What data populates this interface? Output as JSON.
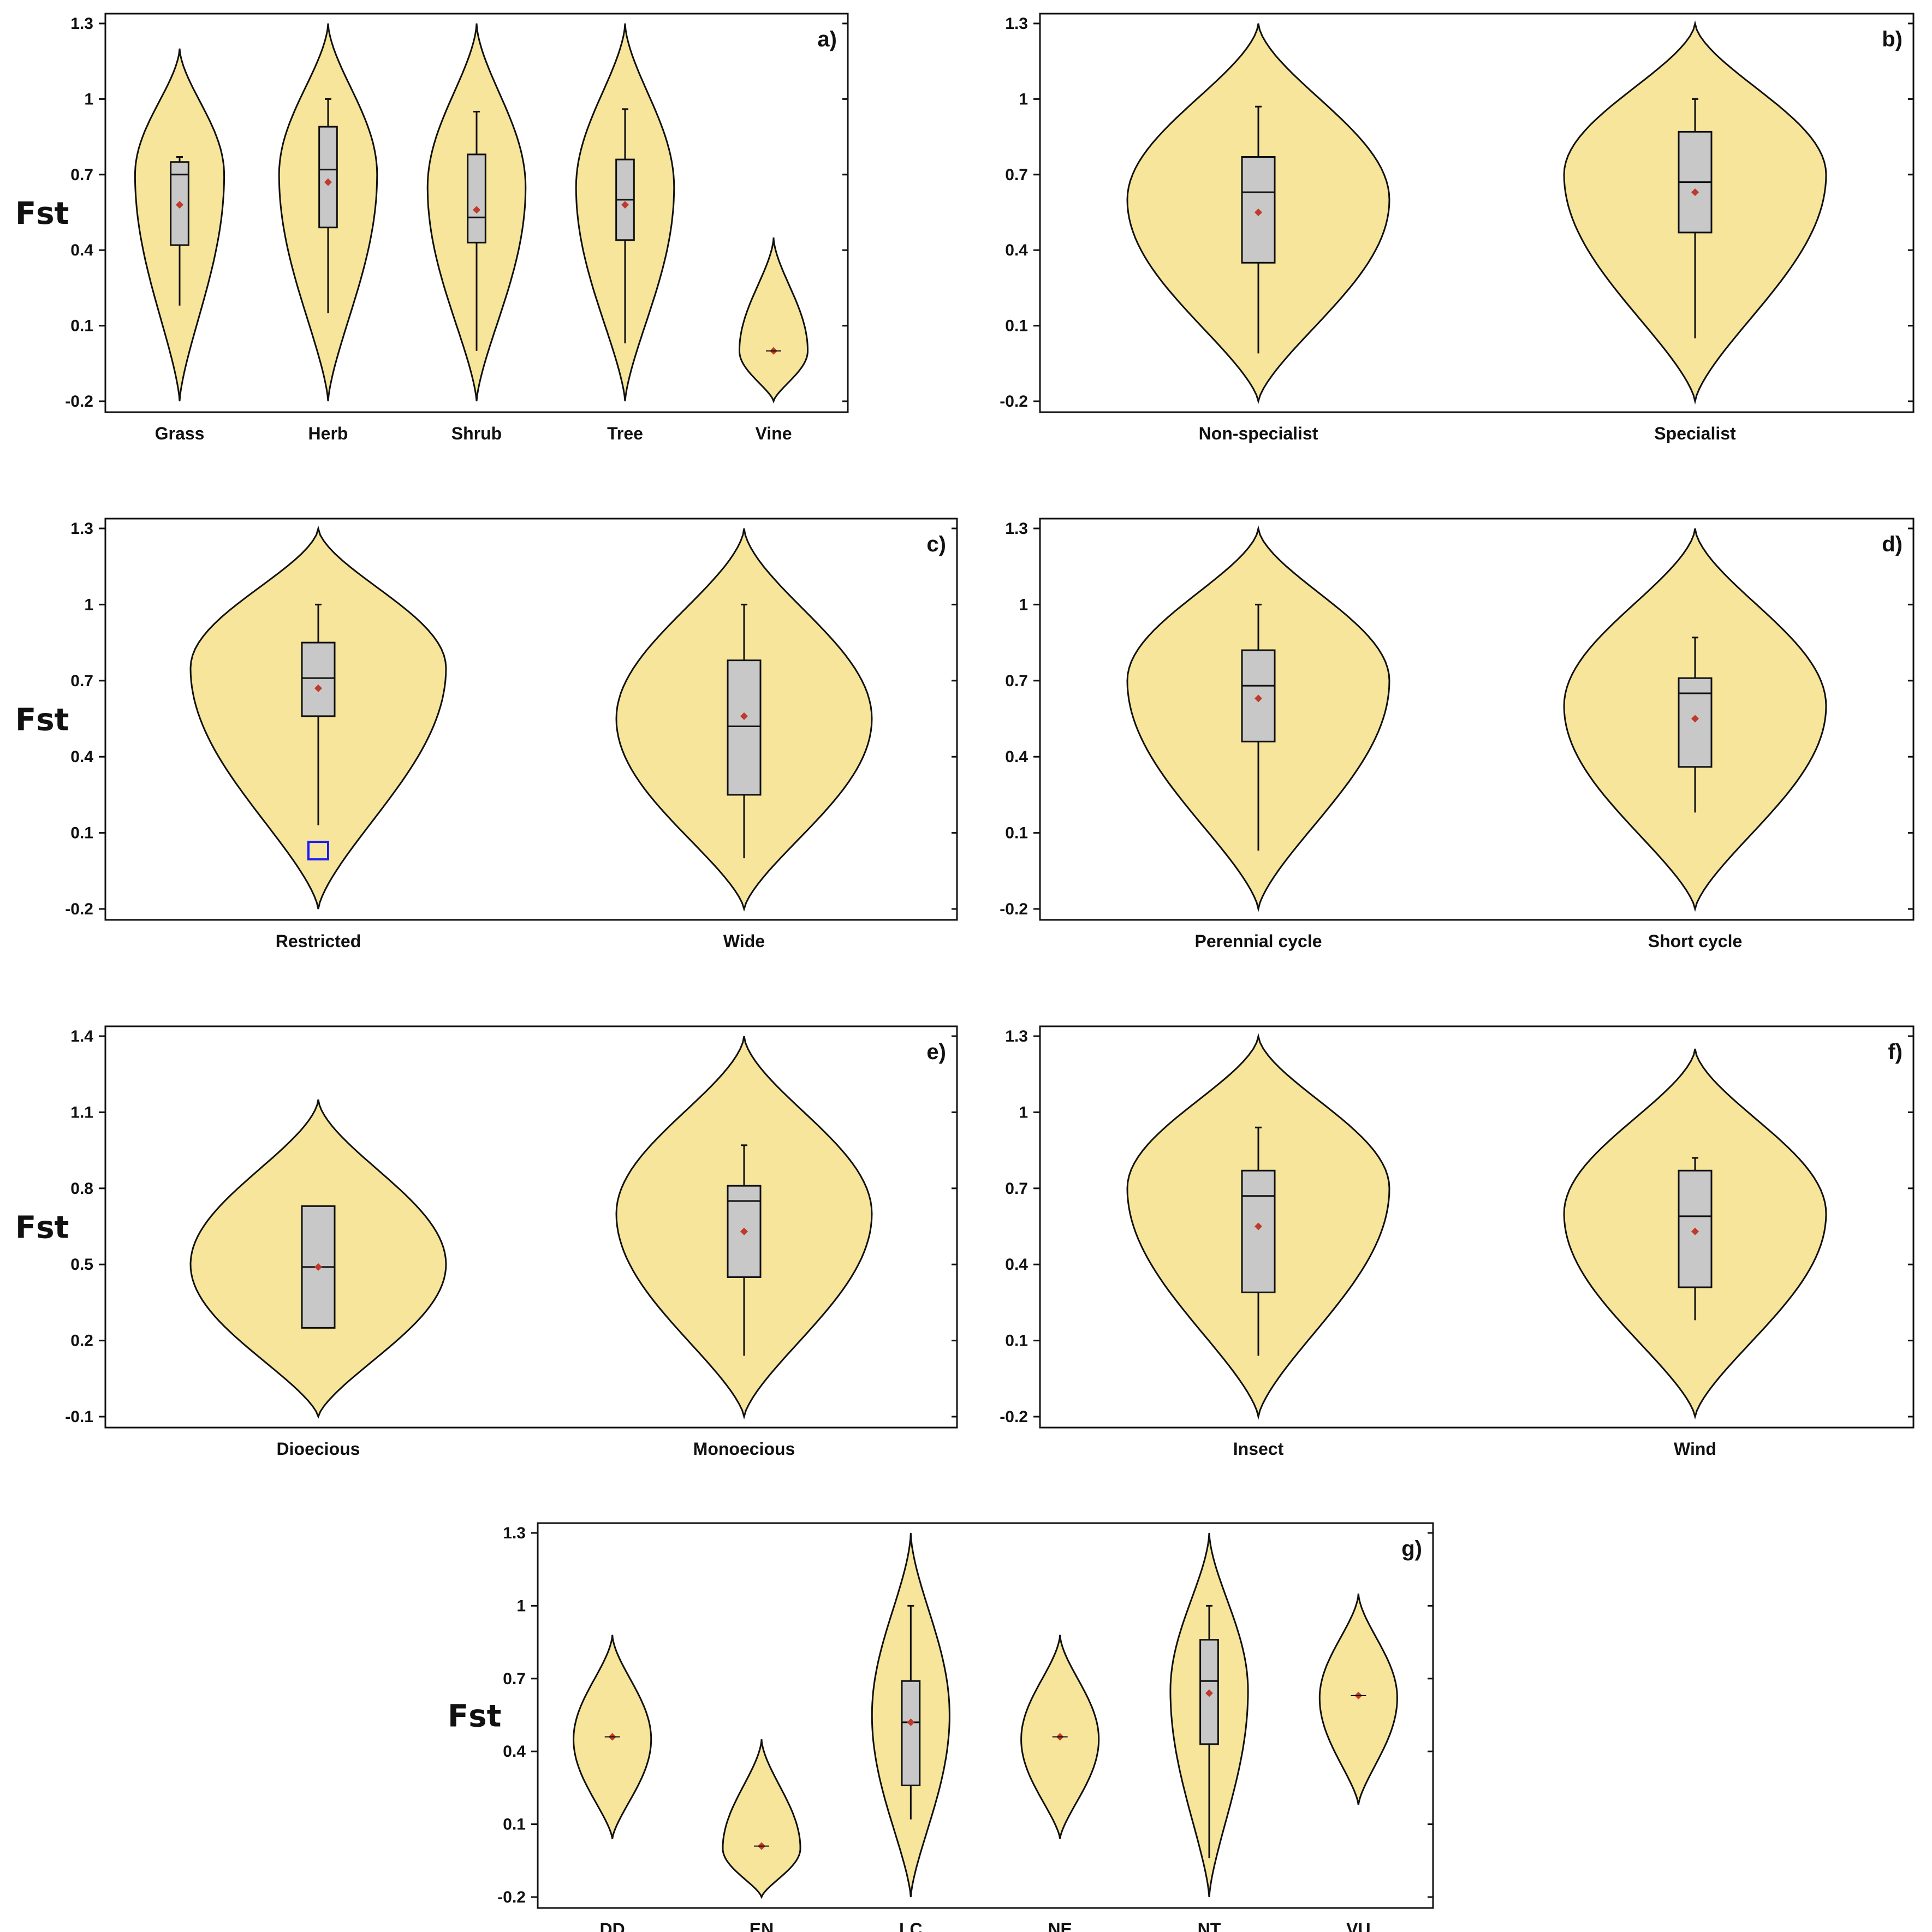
{
  "colors": {
    "violin": "#f6e59a",
    "box": "#c8c8c8",
    "outline": "#111111",
    "mean": "#c0392b",
    "outlier": "#1a1aff"
  },
  "chart_data": [
    {
      "type": "violin",
      "label": "a)",
      "ylabel": "Fst",
      "ylim": [
        -0.2,
        1.3
      ],
      "yticks": [
        "-0.2",
        "0.1",
        "0.4",
        "0.7",
        "1",
        "1.3"
      ],
      "categories": [
        "Grass",
        "Herb",
        "Shrub",
        "Tree",
        "Vine"
      ],
      "groups": [
        {
          "name": "Grass",
          "vmin": -0.2,
          "vmax": 1.2,
          "vmode": 0.7,
          "vwidth": 0.3,
          "q1": 0.42,
          "median": 0.7,
          "q3": 0.75,
          "wlo": 0.18,
          "whi": 0.77,
          "mean": 0.58
        },
        {
          "name": "Herb",
          "vmin": -0.2,
          "vmax": 1.3,
          "vmode": 0.7,
          "vwidth": 0.33,
          "q1": 0.49,
          "median": 0.72,
          "q3": 0.89,
          "wlo": 0.15,
          "whi": 1.0,
          "mean": 0.67
        },
        {
          "name": "Shrub",
          "vmin": -0.2,
          "vmax": 1.3,
          "vmode": 0.65,
          "vwidth": 0.33,
          "q1": 0.43,
          "median": 0.53,
          "q3": 0.78,
          "wlo": 0.0,
          "whi": 0.95,
          "mean": 0.56
        },
        {
          "name": "Tree",
          "vmin": -0.2,
          "vmax": 1.3,
          "vmode": 0.65,
          "vwidth": 0.33,
          "q1": 0.44,
          "median": 0.6,
          "q3": 0.76,
          "wlo": 0.03,
          "whi": 0.96,
          "mean": 0.58
        },
        {
          "name": "Vine",
          "vmin": -0.2,
          "vmax": 0.45,
          "vmode": 0.0,
          "vwidth": 0.23,
          "mean": 0.0
        }
      ]
    },
    {
      "type": "violin",
      "label": "b)",
      "ylabel": "",
      "ylim": [
        -0.2,
        1.3
      ],
      "yticks": [
        "-0.2",
        "0.1",
        "0.4",
        "0.7",
        "1",
        "1.3"
      ],
      "categories": [
        "Non-specialist",
        "Specialist"
      ],
      "groups": [
        {
          "name": "Non-specialist",
          "vmin": -0.2,
          "vmax": 1.3,
          "vmode": 0.6,
          "vwidth": 0.3,
          "q1": 0.35,
          "median": 0.63,
          "q3": 0.77,
          "wlo": -0.01,
          "whi": 0.97,
          "mean": 0.55
        },
        {
          "name": "Specialist",
          "vmin": -0.2,
          "vmax": 1.3,
          "vmode": 0.7,
          "vwidth": 0.3,
          "q1": 0.47,
          "median": 0.67,
          "q3": 0.87,
          "wlo": 0.05,
          "whi": 1.0,
          "mean": 0.63
        }
      ]
    },
    {
      "type": "violin",
      "label": "c)",
      "ylabel": "Fst",
      "ylim": [
        -0.2,
        1.3
      ],
      "yticks": [
        "-0.2",
        "0.1",
        "0.4",
        "0.7",
        "1",
        "1.3"
      ],
      "categories": [
        "Restricted",
        "Wide"
      ],
      "groups": [
        {
          "name": "Restricted",
          "vmin": -0.2,
          "vmax": 1.3,
          "vmode": 0.75,
          "vwidth": 0.3,
          "q1": 0.56,
          "median": 0.71,
          "q3": 0.85,
          "wlo": 0.13,
          "whi": 1.0,
          "mean": 0.67,
          "outliers": [
            0.03
          ]
        },
        {
          "name": "Wide",
          "vmin": -0.2,
          "vmax": 1.3,
          "vmode": 0.55,
          "vwidth": 0.3,
          "q1": 0.25,
          "median": 0.52,
          "q3": 0.78,
          "wlo": 0.0,
          "whi": 1.0,
          "mean": 0.56
        }
      ]
    },
    {
      "type": "violin",
      "label": "d)",
      "ylabel": "",
      "ylim": [
        -0.2,
        1.3
      ],
      "yticks": [
        "-0.2",
        "0.1",
        "0.4",
        "0.7",
        "1",
        "1.3"
      ],
      "categories": [
        "Perennial cycle",
        "Short cycle"
      ],
      "groups": [
        {
          "name": "Perennial cycle",
          "vmin": -0.2,
          "vmax": 1.3,
          "vmode": 0.7,
          "vwidth": 0.3,
          "q1": 0.46,
          "median": 0.68,
          "q3": 0.82,
          "wlo": 0.03,
          "whi": 1.0,
          "mean": 0.63
        },
        {
          "name": "Short cycle",
          "vmin": -0.2,
          "vmax": 1.3,
          "vmode": 0.6,
          "vwidth": 0.3,
          "q1": 0.36,
          "median": 0.65,
          "q3": 0.71,
          "wlo": 0.18,
          "whi": 0.87,
          "mean": 0.55
        }
      ]
    },
    {
      "type": "violin",
      "label": "e)",
      "ylabel": "Fst",
      "ylim": [
        -0.1,
        1.4
      ],
      "yticks": [
        "-0.1",
        "0.2",
        "0.5",
        "0.8",
        "1.1",
        "1.4"
      ],
      "categories": [
        "Dioecious",
        "Monoecious"
      ],
      "groups": [
        {
          "name": "Dioecious",
          "vmin": -0.1,
          "vmax": 1.15,
          "vmode": 0.5,
          "vwidth": 0.3,
          "q1": 0.25,
          "median": 0.49,
          "q3": 0.73,
          "mean": 0.49
        },
        {
          "name": "Monoecious",
          "vmin": -0.1,
          "vmax": 1.4,
          "vmode": 0.7,
          "vwidth": 0.3,
          "q1": 0.45,
          "median": 0.75,
          "q3": 0.81,
          "wlo": 0.14,
          "whi": 0.97,
          "mean": 0.63
        }
      ]
    },
    {
      "type": "violin",
      "label": "f)",
      "ylabel": "",
      "ylim": [
        -0.2,
        1.3
      ],
      "yticks": [
        "-0.2",
        "0.1",
        "0.4",
        "0.7",
        "1",
        "1.3"
      ],
      "categories": [
        "Insect",
        "Wind"
      ],
      "groups": [
        {
          "name": "Insect",
          "vmin": -0.2,
          "vmax": 1.3,
          "vmode": 0.7,
          "vwidth": 0.3,
          "q1": 0.29,
          "median": 0.67,
          "q3": 0.77,
          "wlo": 0.04,
          "whi": 0.94,
          "mean": 0.55
        },
        {
          "name": "Wind",
          "vmin": -0.2,
          "vmax": 1.25,
          "vmode": 0.6,
          "vwidth": 0.3,
          "q1": 0.31,
          "median": 0.59,
          "q3": 0.77,
          "wlo": 0.18,
          "whi": 0.82,
          "mean": 0.53
        }
      ]
    },
    {
      "type": "violin",
      "label": "g)",
      "ylabel": "Fst",
      "ylim": [
        -0.2,
        1.3
      ],
      "yticks": [
        "-0.2",
        "0.1",
        "0.4",
        "0.7",
        "1",
        "1.3"
      ],
      "categories": [
        "DD",
        "EN",
        "LC",
        "NE",
        "NT",
        "VU"
      ],
      "groups": [
        {
          "name": "DD",
          "vmin": 0.04,
          "vmax": 0.88,
          "vmode": 0.45,
          "vwidth": 0.26,
          "mean": 0.46
        },
        {
          "name": "EN",
          "vmin": -0.2,
          "vmax": 0.45,
          "vmode": 0.0,
          "vwidth": 0.26,
          "mean": 0.01
        },
        {
          "name": "LC",
          "vmin": -0.2,
          "vmax": 1.3,
          "vmode": 0.55,
          "vwidth": 0.26,
          "q1": 0.26,
          "median": 0.52,
          "q3": 0.69,
          "wlo": 0.12,
          "whi": 1.0,
          "mean": 0.52
        },
        {
          "name": "NE",
          "vmin": 0.04,
          "vmax": 0.88,
          "vmode": 0.45,
          "vwidth": 0.26,
          "mean": 0.46
        },
        {
          "name": "NT",
          "vmin": -0.2,
          "vmax": 1.3,
          "vmode": 0.65,
          "vwidth": 0.26,
          "q1": 0.43,
          "median": 0.69,
          "q3": 0.86,
          "wlo": -0.04,
          "whi": 1.0,
          "mean": 0.64
        },
        {
          "name": "VU",
          "vmin": 0.18,
          "vmax": 1.05,
          "vmode": 0.62,
          "vwidth": 0.26,
          "mean": 0.63
        }
      ]
    }
  ]
}
